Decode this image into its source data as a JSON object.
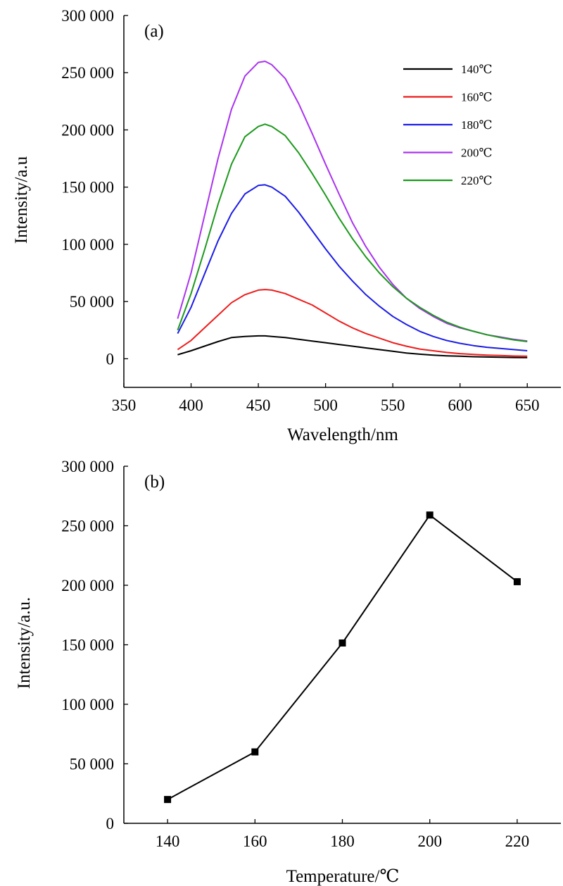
{
  "chart_data": [
    {
      "type": "line",
      "panel_label": "(a)",
      "xlabel": "Wavelength/nm",
      "ylabel": "Intensity/a.u",
      "xlim": [
        350,
        675
      ],
      "ylim": [
        -25000,
        300000
      ],
      "xticks": [
        350,
        400,
        450,
        500,
        550,
        600,
        650
      ],
      "xtick_labels": [
        "350",
        "400",
        "450",
        "500",
        "550",
        "600",
        "650"
      ],
      "yticks": [
        0,
        50000,
        100000,
        150000,
        200000,
        250000,
        300000
      ],
      "ytick_labels": [
        "0",
        "50 000",
        "100 000",
        "150 000",
        "200 000",
        "250 000",
        "300 000"
      ],
      "legend_position": "top-right",
      "x": [
        390,
        400,
        410,
        420,
        430,
        440,
        450,
        455,
        460,
        470,
        480,
        490,
        500,
        510,
        520,
        530,
        540,
        550,
        560,
        570,
        580,
        590,
        600,
        610,
        620,
        630,
        640,
        650
      ],
      "series": [
        {
          "name": "140℃",
          "color": "#000000",
          "values": [
            3500,
            7000,
            11000,
            15000,
            18500,
            19500,
            20000,
            20000,
            19500,
            18500,
            17000,
            15500,
            14000,
            12500,
            11000,
            9500,
            8000,
            6500,
            5000,
            4000,
            3200,
            2600,
            2200,
            1800,
            1500,
            1300,
            1100,
            1000
          ]
        },
        {
          "name": "160℃",
          "color": "#ee1c1c",
          "values": [
            8000,
            16000,
            27000,
            38000,
            49000,
            56000,
            60000,
            60500,
            60000,
            57000,
            52000,
            47000,
            40000,
            33000,
            27000,
            22000,
            18000,
            14000,
            11000,
            8500,
            7000,
            5500,
            4500,
            3800,
            3200,
            2800,
            2400,
            2200
          ]
        },
        {
          "name": "180℃",
          "color": "#1c1ce6",
          "values": [
            22000,
            45000,
            74000,
            103000,
            127000,
            144000,
            151500,
            152000,
            150000,
            142000,
            128000,
            112000,
            96000,
            81000,
            68000,
            56000,
            46000,
            37000,
            30000,
            24000,
            19500,
            16000,
            13500,
            11500,
            10000,
            9000,
            8000,
            7000
          ]
        },
        {
          "name": "200℃",
          "color": "#aa33ee",
          "values": [
            35000,
            75000,
            125000,
            175000,
            218000,
            247000,
            259000,
            260000,
            257000,
            245000,
            223000,
            197000,
            170000,
            144000,
            119000,
            98000,
            80000,
            65000,
            53000,
            44000,
            37000,
            31000,
            27000,
            24000,
            21000,
            19000,
            17000,
            15500
          ]
        },
        {
          "name": "220℃",
          "color": "#1c991c",
          "values": [
            25000,
            57000,
            95000,
            135000,
            170000,
            194000,
            203000,
            205000,
            203000,
            195000,
            180000,
            162000,
            143000,
            123000,
            105000,
            89000,
            75000,
            63000,
            53000,
            45000,
            38000,
            32000,
            27500,
            24000,
            21000,
            18500,
            16500,
            15000
          ]
        }
      ]
    },
    {
      "type": "line",
      "panel_label": "(b)",
      "xlabel": "Temperature/℃",
      "ylabel": "Intensity/a.u.",
      "xlim": [
        130,
        230
      ],
      "ylim": [
        0,
        300000
      ],
      "xticks": [
        140,
        160,
        180,
        200,
        220
      ],
      "xtick_labels": [
        "140",
        "160",
        "180",
        "200",
        "220"
      ],
      "yticks": [
        0,
        50000,
        100000,
        150000,
        200000,
        250000,
        300000
      ],
      "ytick_labels": [
        "0",
        "50 000",
        "100 000",
        "150 000",
        "200 000",
        "250 000",
        "300 000"
      ],
      "x": [
        140,
        160,
        180,
        200,
        220
      ],
      "series": [
        {
          "color": "#000000",
          "marker": "square",
          "values": [
            20000,
            60000,
            151500,
            259000,
            203000
          ]
        }
      ]
    }
  ]
}
